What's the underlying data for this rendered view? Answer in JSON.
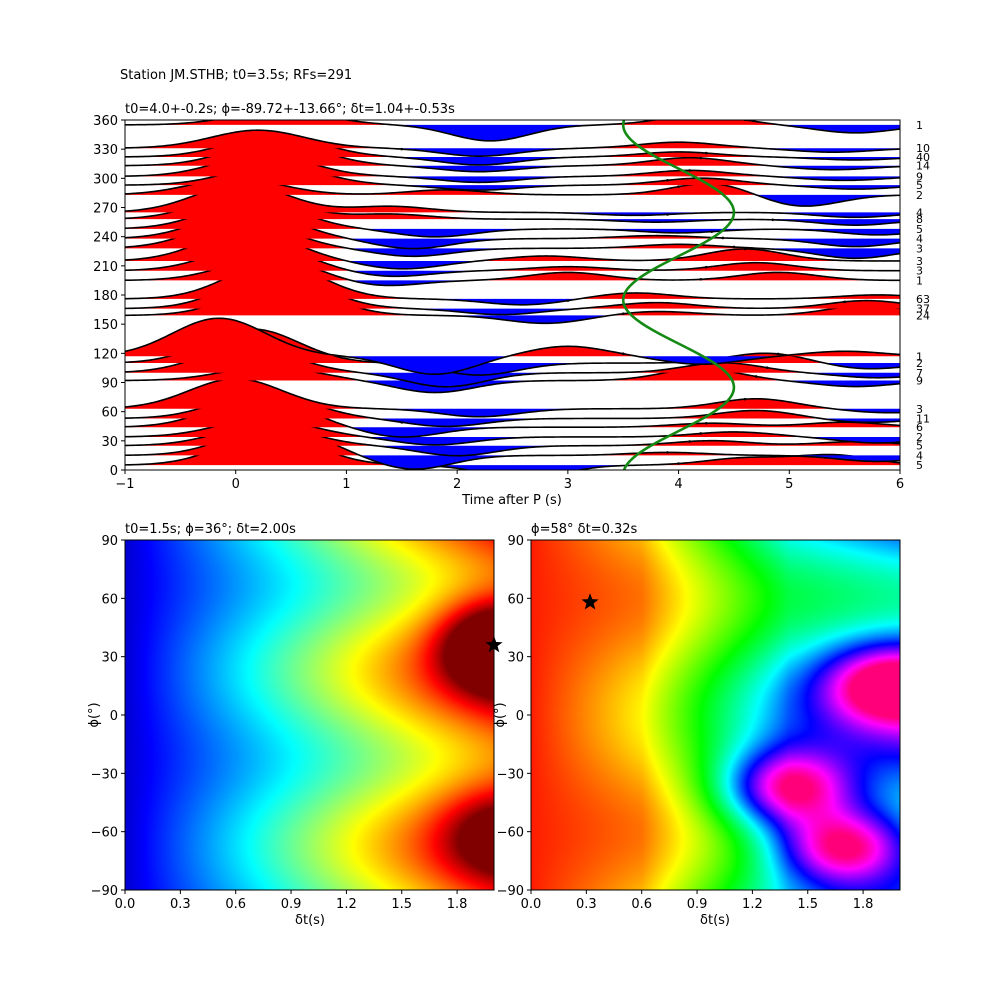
{
  "suptitle": "Station JM.STHB; t0=3.5s; RFs=291",
  "colors": {
    "positive": "#ff0000",
    "negative": "#0000ff",
    "trace": "#000000",
    "curve": "#138a13",
    "star": "#000000"
  },
  "chart_data": [
    {
      "type": "line",
      "title": "t0=4.0+-0.2s; ϕ=-89.72+-13.66°; δt=1.04+-0.53s",
      "xlabel": "Time after P (s)",
      "ylabel": "",
      "xlim": [
        -1,
        6
      ],
      "ylim": [
        0,
        360
      ],
      "xticks": [
        "−1",
        "0",
        "1",
        "2",
        "3",
        "4",
        "5",
        "6"
      ],
      "yticks": [
        "0",
        "30",
        "60",
        "90",
        "120",
        "150",
        "180",
        "210",
        "240",
        "270",
        "300",
        "330",
        "360"
      ],
      "series": [
        {
          "baz": 5,
          "count": "5",
          "pulse": [
            0.3,
            32
          ],
          "wig": [
            [
              2.6,
              -14
            ],
            [
              4.6,
              7
            ],
            [
              5.4,
              10
            ]
          ]
        },
        {
          "baz": 15,
          "count": "4",
          "pulse": [
            0.35,
            30
          ],
          "wig": [
            [
              1.6,
              -14
            ],
            [
              3.9,
              3
            ],
            [
              5.8,
              -6
            ]
          ]
        },
        {
          "baz": 25,
          "count": "5",
          "pulse": [
            0.25,
            20
          ],
          "wig": [
            [
              2.0,
              -10
            ],
            [
              4.3,
              5
            ],
            [
              5.6,
              4
            ]
          ]
        },
        {
          "baz": 34,
          "count": "2",
          "pulse": [
            0.25,
            18
          ],
          "wig": [
            [
              1.8,
              -8
            ],
            [
              4.5,
              5
            ],
            [
              5.8,
              -6
            ]
          ]
        },
        {
          "baz": 44,
          "count": "6",
          "pulse": [
            0.2,
            30
          ],
          "wig": [
            [
              1.5,
              -10
            ],
            [
              4.3,
              4
            ],
            [
              5.5,
              5
            ]
          ]
        },
        {
          "baz": 53,
          "count": "11",
          "pulse": [
            0.25,
            26
          ],
          "wig": [
            [
              1.9,
              -8
            ],
            [
              4.7,
              8
            ],
            [
              5.7,
              -4
            ]
          ]
        },
        {
          "baz": 63,
          "count": "3",
          "pulse": [
            0.0,
            30
          ],
          "wig": [
            [
              2.2,
              -8
            ],
            [
              4.7,
              10
            ],
            [
              5.9,
              -4
            ]
          ]
        },
        {
          "baz": 92,
          "count": "9",
          "pulse": [
            0.3,
            14
          ],
          "wig": [
            [
              1.8,
              -12
            ],
            [
              4.2,
              12
            ],
            [
              5.6,
              -6
            ]
          ]
        },
        {
          "baz": 100,
          "count": "7",
          "pulse": [
            0.1,
            26
          ],
          "wig": [
            [
              1.9,
              -14
            ],
            [
              4.4,
              10
            ],
            [
              5.8,
              -5
            ]
          ]
        },
        {
          "baz": 110,
          "count": "2",
          "pulse": [
            0.15,
            34
          ],
          "wig": [
            [
              2.2,
              -12
            ],
            [
              4.8,
              10
            ],
            [
              5.7,
              -6
            ]
          ]
        },
        {
          "baz": 117,
          "count": "1",
          "pulse": [
            -0.15,
            38
          ],
          "wig": [
            [
              1.8,
              -18
            ],
            [
              3.0,
              10
            ],
            [
              4.2,
              -8
            ],
            [
              5.5,
              5
            ]
          ]
        },
        {
          "baz": 159,
          "count": "24",
          "pulse": [
            0.4,
            32
          ],
          "wig": [
            [
              2.8,
              -8
            ],
            [
              3.8,
              4
            ],
            [
              5.7,
              10
            ]
          ]
        },
        {
          "baz": 166,
          "count": "37",
          "pulse": [
            0.35,
            36
          ],
          "wig": [
            [
              2.4,
              -6
            ],
            [
              3.8,
              6
            ],
            [
              5.7,
              8
            ]
          ]
        },
        {
          "baz": 176,
          "count": "63",
          "pulse": [
            0.35,
            36
          ],
          "wig": [
            [
              2.6,
              -6
            ],
            [
              3.6,
              6
            ],
            [
              5.8,
              4
            ]
          ]
        },
        {
          "baz": 195,
          "count": "1",
          "pulse": [
            0.3,
            22
          ],
          "wig": [
            [
              1.3,
              -6
            ],
            [
              3.0,
              8
            ],
            [
              4.9,
              8
            ]
          ]
        },
        {
          "baz": 205,
          "count": "3",
          "pulse": [
            0.2,
            26
          ],
          "wig": [
            [
              1.4,
              -6
            ],
            [
              3.0,
              4
            ],
            [
              4.7,
              8
            ]
          ]
        },
        {
          "baz": 215,
          "count": "3",
          "pulse": [
            0.1,
            30
          ],
          "wig": [
            [
              1.5,
              -8
            ],
            [
              2.8,
              5
            ],
            [
              4.6,
              12
            ]
          ]
        },
        {
          "baz": 228,
          "count": "3",
          "pulse": [
            0.05,
            28
          ],
          "wig": [
            [
              1.6,
              -8
            ],
            [
              4.0,
              4
            ],
            [
              5.6,
              -10
            ]
          ]
        },
        {
          "baz": 238,
          "count": "4",
          "pulse": [
            0.1,
            28
          ],
          "wig": [
            [
              1.6,
              -10
            ],
            [
              3.8,
              3
            ],
            [
              5.6,
              -8
            ]
          ]
        },
        {
          "baz": 248,
          "count": "5",
          "pulse": [
            0.15,
            28
          ],
          "wig": [
            [
              1.8,
              -8
            ],
            [
              4.0,
              -4
            ],
            [
              5.8,
              -6
            ]
          ]
        },
        {
          "baz": 258,
          "count": "8",
          "pulse": [
            0.1,
            26
          ],
          "wig": [
            [
              1.4,
              5
            ],
            [
              3.8,
              -3
            ],
            [
              5.6,
              -6
            ]
          ]
        },
        {
          "baz": 265,
          "count": "4",
          "pulse": [
            0.05,
            28
          ],
          "wig": [
            [
              1.4,
              6
            ],
            [
              3.6,
              -3
            ],
            [
              5.6,
              -5
            ]
          ]
        },
        {
          "baz": 283,
          "count": "2",
          "pulse": [
            0.0,
            16
          ],
          "wig": [
            [
              1.9,
              5
            ],
            [
              4.3,
              12
            ],
            [
              5.1,
              -12
            ]
          ]
        },
        {
          "baz": 293,
          "count": "5",
          "pulse": [
            0.35,
            20
          ],
          "wig": [
            [
              2.2,
              -5
            ],
            [
              4.2,
              7
            ],
            [
              5.6,
              -4
            ]
          ]
        },
        {
          "baz": 302,
          "count": "9",
          "pulse": [
            0.25,
            22
          ],
          "wig": [
            [
              2.2,
              -6
            ],
            [
              4.1,
              6
            ],
            [
              5.5,
              -4
            ]
          ]
        },
        {
          "baz": 313,
          "count": "14",
          "pulse": [
            0.35,
            24
          ],
          "wig": [
            [
              2.2,
              -6
            ],
            [
              4.1,
              8
            ],
            [
              5.4,
              -4
            ]
          ]
        },
        {
          "baz": 322,
          "count": "40",
          "pulse": [
            0.35,
            22
          ],
          "wig": [
            [
              2.2,
              -8
            ],
            [
              4.0,
              5
            ],
            [
              5.6,
              -3
            ]
          ]
        },
        {
          "baz": 331,
          "count": "10",
          "pulse": [
            0.2,
            18
          ],
          "wig": [
            [
              2.2,
              -8
            ],
            [
              4.0,
              6
            ],
            [
              5.4,
              -4
            ]
          ]
        },
        {
          "baz": 355,
          "count": "1",
          "pulse": [
            0.4,
            14
          ],
          "wig": [
            [
              2.3,
              -16
            ],
            [
              4.2,
              10
            ],
            [
              5.6,
              -8
            ]
          ]
        }
      ],
      "green_curve": {
        "center": 4.0,
        "amplitude": 0.5,
        "description_free": true
      },
      "picks_x": [
        4.0,
        3.9,
        4.1,
        4.2,
        4.25,
        1.5,
        4.6,
        4.7,
        4.8,
        4.9,
        3.5,
        3.5,
        5.5,
        3.0,
        4.2,
        4.25,
        4.6,
        4.5,
        4.4,
        4.3,
        4.85,
        3.9
      ]
    },
    {
      "type": "heatmap",
      "title": "t0=1.5s; ϕ=36°; δt=2.00s",
      "xlabel": "δt(s)",
      "ylabel": "ϕ(°)",
      "xlim": [
        0,
        2
      ],
      "ylim": [
        -90,
        90
      ],
      "xticks": [
        "0.0",
        "0.3",
        "0.6",
        "0.9",
        "1.2",
        "1.5",
        "1.8"
      ],
      "yticks": [
        "−90",
        "−60",
        "−30",
        "0",
        "30",
        "60",
        "90"
      ],
      "colormap": "jet",
      "best": {
        "dt": 2.0,
        "phi": 36
      },
      "peaks": [
        {
          "dt": 2.0,
          "phi": 36,
          "value": 1.0
        },
        {
          "dt": 2.0,
          "phi": -62,
          "value": 0.75
        }
      ]
    },
    {
      "type": "heatmap",
      "title": "ϕ=58° δt=0.32s",
      "xlabel": "δt(s)",
      "ylabel": "ϕ(°)",
      "xlim": [
        0,
        2
      ],
      "ylim": [
        -90,
        90
      ],
      "xticks": [
        "0.0",
        "0.3",
        "0.6",
        "0.9",
        "1.2",
        "1.5",
        "1.8"
      ],
      "yticks": [
        "−90",
        "−60",
        "−30",
        "0",
        "30",
        "60",
        "90"
      ],
      "colormap": "hsv",
      "best": {
        "dt": 0.32,
        "phi": 58
      },
      "peaks": [
        {
          "dt": 0.32,
          "phi": 58,
          "value": 0.0
        },
        {
          "dt": 1.4,
          "phi": -38,
          "value": 0.82
        },
        {
          "dt": 1.7,
          "phi": -68,
          "value": 0.85
        },
        {
          "dt": 1.95,
          "phi": 16,
          "value": 0.76
        }
      ]
    }
  ]
}
